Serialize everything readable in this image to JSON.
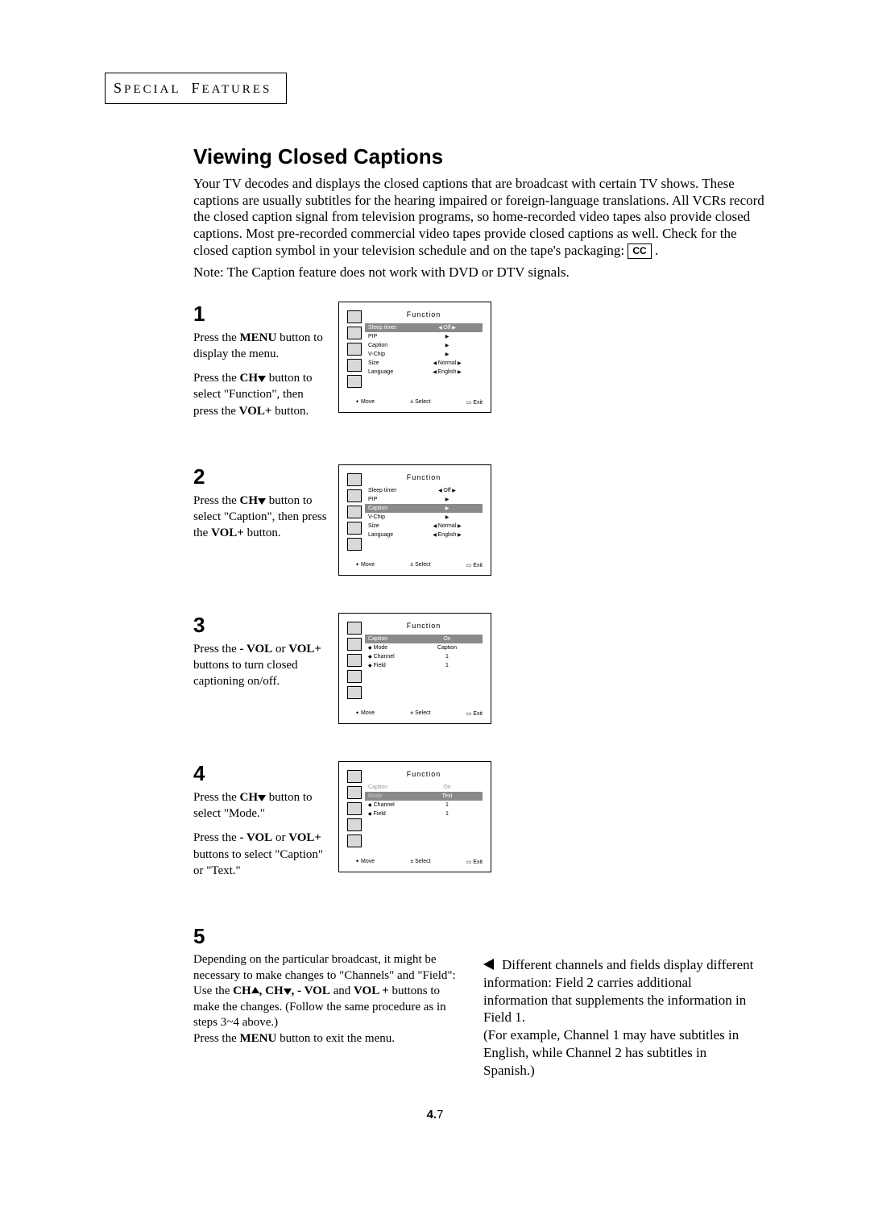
{
  "section_header": {
    "word1_cap": "S",
    "word1_rest": "PECIAL",
    "word2_cap": "F",
    "word2_rest": "EATURES"
  },
  "title": "Viewing Closed Captions",
  "intro_lines": "Your TV decodes and displays the closed captions that are broadcast with certain TV shows. These captions are usually subtitles for the hearing impaired or foreign-language translations. All VCRs record the closed caption signal from television programs, so home-recorded video tapes also provide closed captions. Most pre-recorded commercial video tapes provide closed captions as well. Check for the closed caption symbol in your television schedule and on the tape's packaging:",
  "cc_badge": "CC",
  "period": ".",
  "note": "Note: The Caption feature does not work with DVD or DTV signals.",
  "steps": {
    "s1": {
      "num": "1",
      "p1_a": "Press the ",
      "p1_b": "MENU",
      "p1_c": " button to display the menu.",
      "p2_a": "Press the ",
      "p2_b": "CH",
      "p2_c": " button to select \"Function\", then press the ",
      "p2_d": "VOL+",
      "p2_e": " button."
    },
    "s2": {
      "num": "2",
      "p1_a": "Press the ",
      "p1_b": "CH",
      "p1_c": " button to select \"Caption\", then press the ",
      "p1_d": "VOL+",
      "p1_e": " button."
    },
    "s3": {
      "num": "3",
      "p1_a": "Press the ",
      "p1_b": "- VOL",
      "p1_c": " or ",
      "p1_d": "VOL+",
      "p1_e": " buttons to turn closed captioning on/off."
    },
    "s4": {
      "num": "4",
      "p1_a": "Press the ",
      "p1_b": "CH",
      "p1_c": " button to select \"Mode.\"",
      "p2_a": "Press the ",
      "p2_b": "- VOL",
      "p2_c": " or ",
      "p2_d": "VOL+",
      "p2_e": " buttons to select \"Caption\" or \"Text.\""
    },
    "s5": {
      "num": "5",
      "l1": "Depending on the particular broadcast, it might be necessary to make changes to \"Channels\" and \"Field\":",
      "l2_a": "Use the ",
      "l2_b": "CH",
      "l2_c": ", CH",
      "l2_d": ", - VOL",
      "l2_e": " and ",
      "l2_f": "VOL +",
      "l2_g": " buttons to make the changes. (Follow the same procedure as in steps 3~4 above.)",
      "l3_a": "Press the ",
      "l3_b": "MENU",
      "l3_c": " button to exit the menu."
    }
  },
  "osd": {
    "title": "Function",
    "footer": {
      "move": "Move",
      "select": "Select",
      "exit": "Exit"
    },
    "menu1": [
      {
        "label": "Sleep timer",
        "val": "Off",
        "lr": true,
        "hl": true
      },
      {
        "label": "PIP",
        "tri": true
      },
      {
        "label": "Caption",
        "tri": true
      },
      {
        "label": "V-Chip",
        "tri": true
      },
      {
        "label": "Size",
        "val": "Normal",
        "lr": true
      },
      {
        "label": "Language",
        "val": "English",
        "lr": true
      }
    ],
    "menu2": [
      {
        "label": "Sleep timer",
        "val": "Off",
        "lr": true
      },
      {
        "label": "PIP",
        "tri": true
      },
      {
        "label": "Caption",
        "tri": true,
        "hl": true
      },
      {
        "label": "V-Chip",
        "tri": true
      },
      {
        "label": "Size",
        "val": "Normal",
        "lr": true
      },
      {
        "label": "Language",
        "val": "English",
        "lr": true
      }
    ],
    "menu3": [
      {
        "label": "Caption",
        "val": "On",
        "lr_small": true,
        "hl": true
      },
      {
        "label": "Mode",
        "val": "Caption",
        "diamond": true
      },
      {
        "label": "Channel",
        "val": "1",
        "diamond": true
      },
      {
        "label": "Field",
        "val": "1",
        "diamond": true
      }
    ],
    "menu4": [
      {
        "label": "Caption",
        "val": "On",
        "dim": true
      },
      {
        "label": "Mode",
        "val": "Text",
        "lr_small": true,
        "hl": true,
        "dim_label": true
      },
      {
        "label": "Channel",
        "val": "1",
        "diamond": true
      },
      {
        "label": "Field",
        "val": "1",
        "diamond": true
      }
    ]
  },
  "side_note": "Different channels and fields display different information: Field 2 carries additional information that supplements the information in Field 1.\n(For example, Channel 1 may have subtitles in English, while Channel 2 has subtitles in Spanish.)",
  "page_no": {
    "bold": "4.",
    "rest": "7"
  },
  "colors": {
    "text": "#000000",
    "bg": "#ffffff",
    "osd_hl": "#8a8a8a",
    "osd_icon_bg": "#d9d9d9"
  }
}
